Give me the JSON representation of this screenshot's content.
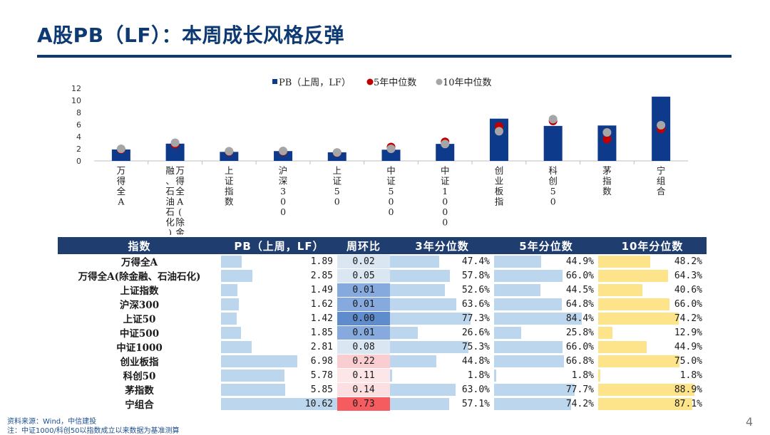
{
  "title": "A股PB（LF）：本周成长风格反弹",
  "footer": {
    "source": "资料来源：Wind，中信建投",
    "note": "注：中证1000/科创50以指数成立以来数据为基准测算",
    "page": "4"
  },
  "colors": {
    "title": "#0e3a73",
    "bar": "#0e3a8c",
    "median5": "#c00000",
    "median10": "#a6a6a6",
    "table_header": "#1f3d6e",
    "pct_bar": "#bcd6ee",
    "pct10_bar": "#fde38a"
  },
  "chart_data": {
    "type": "bar",
    "categories": [
      "万得全A",
      "万得全A(除金融、石油石化)",
      "上证指数",
      "沪深300",
      "上证50",
      "中证500",
      "中证1000",
      "创业板指",
      "科创50",
      "茅指数",
      "宁组合"
    ],
    "category_lines": [
      [
        "万得全A"
      ],
      [
        "万得全A(除金",
        "融、石油石化)"
      ],
      [
        "上证指数"
      ],
      [
        "沪深300"
      ],
      [
        "上证50"
      ],
      [
        "中证500"
      ],
      [
        "中证1000"
      ],
      [
        "创业板指"
      ],
      [
        "科创50"
      ],
      [
        "茅指数"
      ],
      [
        "宁组合"
      ]
    ],
    "series": [
      {
        "name": "PB（上周，LF）",
        "kind": "bar",
        "values": [
          1.89,
          2.85,
          1.49,
          1.62,
          1.42,
          1.85,
          2.81,
          6.98,
          5.78,
          5.85,
          10.62
        ]
      },
      {
        "name": "5年中位数",
        "kind": "dot",
        "values": [
          1.9,
          2.75,
          1.5,
          1.55,
          1.35,
          2.3,
          3.15,
          5.7,
          6.6,
          3.6,
          5.3
        ]
      },
      {
        "name": "10年中位数",
        "kind": "dot",
        "values": [
          2.0,
          3.0,
          1.6,
          1.65,
          1.4,
          2.0,
          2.8,
          4.9,
          6.9,
          4.7,
          5.9
        ]
      }
    ],
    "ylim": [
      0,
      12
    ],
    "yticks": [
      0,
      2,
      4,
      6,
      8,
      10,
      12
    ],
    "legend_position": "top"
  },
  "table": {
    "headers": [
      "指数",
      "PB（上周，LF）",
      "周环比",
      "3年分位数",
      "5年分位数",
      "10年分位数"
    ],
    "rows": [
      {
        "name": "万得全A",
        "pb": "1.89",
        "wow": "0.02",
        "p3": "47.4%",
        "p5": "44.9%",
        "p10": "48.2%"
      },
      {
        "name": "万得全A(除金融、石油石化)",
        "pb": "2.85",
        "wow": "0.05",
        "p3": "57.8%",
        "p5": "66.0%",
        "p10": "64.3%"
      },
      {
        "name": "上证指数",
        "pb": "1.49",
        "wow": "0.01",
        "p3": "52.6%",
        "p5": "44.5%",
        "p10": "40.6%"
      },
      {
        "name": "沪深300",
        "pb": "1.62",
        "wow": "0.01",
        "p3": "63.6%",
        "p5": "64.8%",
        "p10": "66.0%"
      },
      {
        "name": "上证50",
        "pb": "1.42",
        "wow": "0.00",
        "p3": "77.3%",
        "p5": "84.4%",
        "p10": "74.2%"
      },
      {
        "name": "中证500",
        "pb": "1.85",
        "wow": "0.01",
        "p3": "26.6%",
        "p5": "25.8%",
        "p10": "12.9%"
      },
      {
        "name": "中证1000",
        "pb": "2.81",
        "wow": "0.08",
        "p3": "75.3%",
        "p5": "66.0%",
        "p10": "44.9%"
      },
      {
        "name": "创业板指",
        "pb": "6.98",
        "wow": "0.22",
        "p3": "44.8%",
        "p5": "66.8%",
        "p10": "75.0%"
      },
      {
        "name": "科创50",
        "pb": "5.78",
        "wow": "0.11",
        "p3": "1.8%",
        "p5": "1.8%",
        "p10": "1.8%"
      },
      {
        "name": "茅指数",
        "pb": "5.85",
        "wow": "0.14",
        "p3": "63.0%",
        "p5": "77.7%",
        "p10": "88.9%"
      },
      {
        "name": "宁组合",
        "pb": "10.62",
        "wow": "0.73",
        "p3": "57.1%",
        "p5": "74.2%",
        "p10": "87.1%"
      }
    ]
  }
}
